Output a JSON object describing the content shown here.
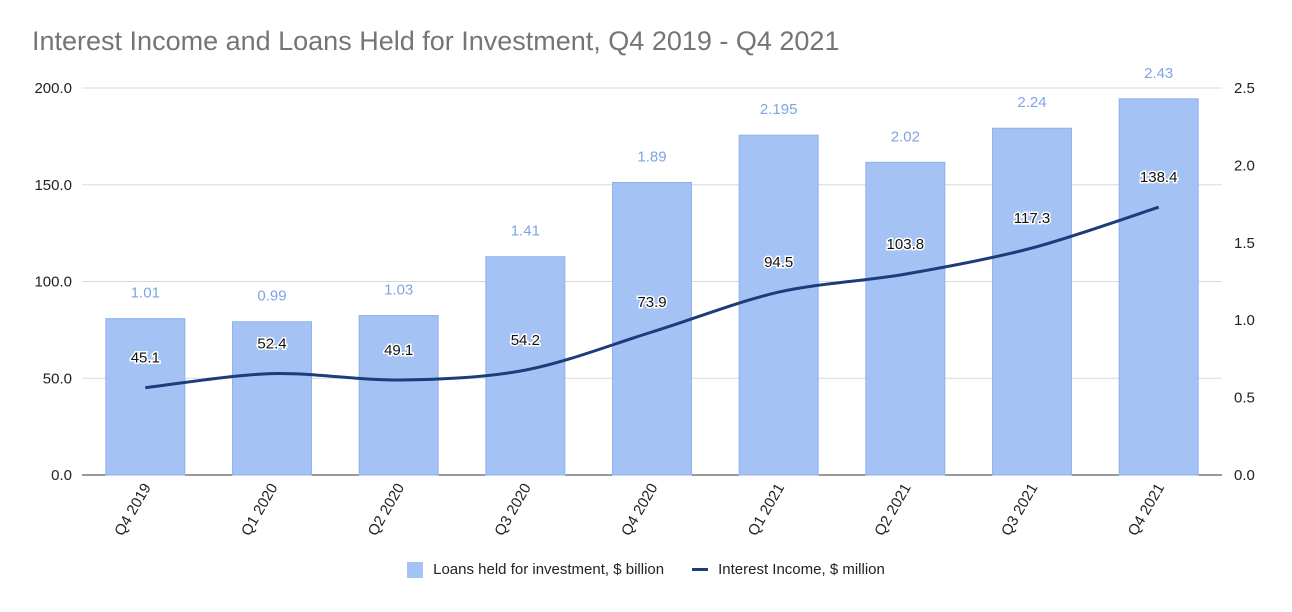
{
  "chart_data": {
    "type": "bar",
    "title": "Interest Income and Loans Held for Investment, Q4 2019 - Q4 2021",
    "categories": [
      "Q4 2019",
      "Q1 2020",
      "Q2 2020",
      "Q3 2020",
      "Q4 2020",
      "Q1 2021",
      "Q2 2021",
      "Q3 2021",
      "Q4 2021"
    ],
    "series": [
      {
        "name": "Loans held for investment, $ billion",
        "type": "bar",
        "axis": "right",
        "values": [
          1.01,
          0.99,
          1.03,
          1.41,
          1.89,
          2.195,
          2.02,
          2.24,
          2.43
        ],
        "labels": [
          "1.01",
          "0.99",
          "1.03",
          "1.41",
          "1.89",
          "2.195",
          "2.02",
          "2.24",
          "2.43"
        ]
      },
      {
        "name": "Interest Income, $ million",
        "type": "line",
        "axis": "left",
        "values": [
          45.1,
          52.4,
          49.1,
          54.2,
          73.9,
          94.5,
          103.8,
          117.3,
          138.4
        ],
        "labels": [
          "45.1",
          "52.4",
          "49.1",
          "54.2",
          "73.9",
          "94.5",
          "103.8",
          "117.3",
          "138.4"
        ]
      }
    ],
    "left_axis": {
      "min": 0,
      "max": 200,
      "ticks": [
        "0.0",
        "50.0",
        "100.0",
        "150.0",
        "200.0"
      ]
    },
    "right_axis": {
      "min": 0,
      "max": 2.5,
      "ticks": [
        "0.0",
        "0.5",
        "1.0",
        "1.5",
        "2.0",
        "2.5"
      ]
    },
    "grid": true,
    "legend_position": "bottom",
    "colors": {
      "bar": "#a4c2f4",
      "bar_label": "#7ea4e6",
      "line": "#1c3d7a",
      "grid": "#d9d9d9",
      "axis_text": "#222222",
      "title": "#757575"
    }
  }
}
